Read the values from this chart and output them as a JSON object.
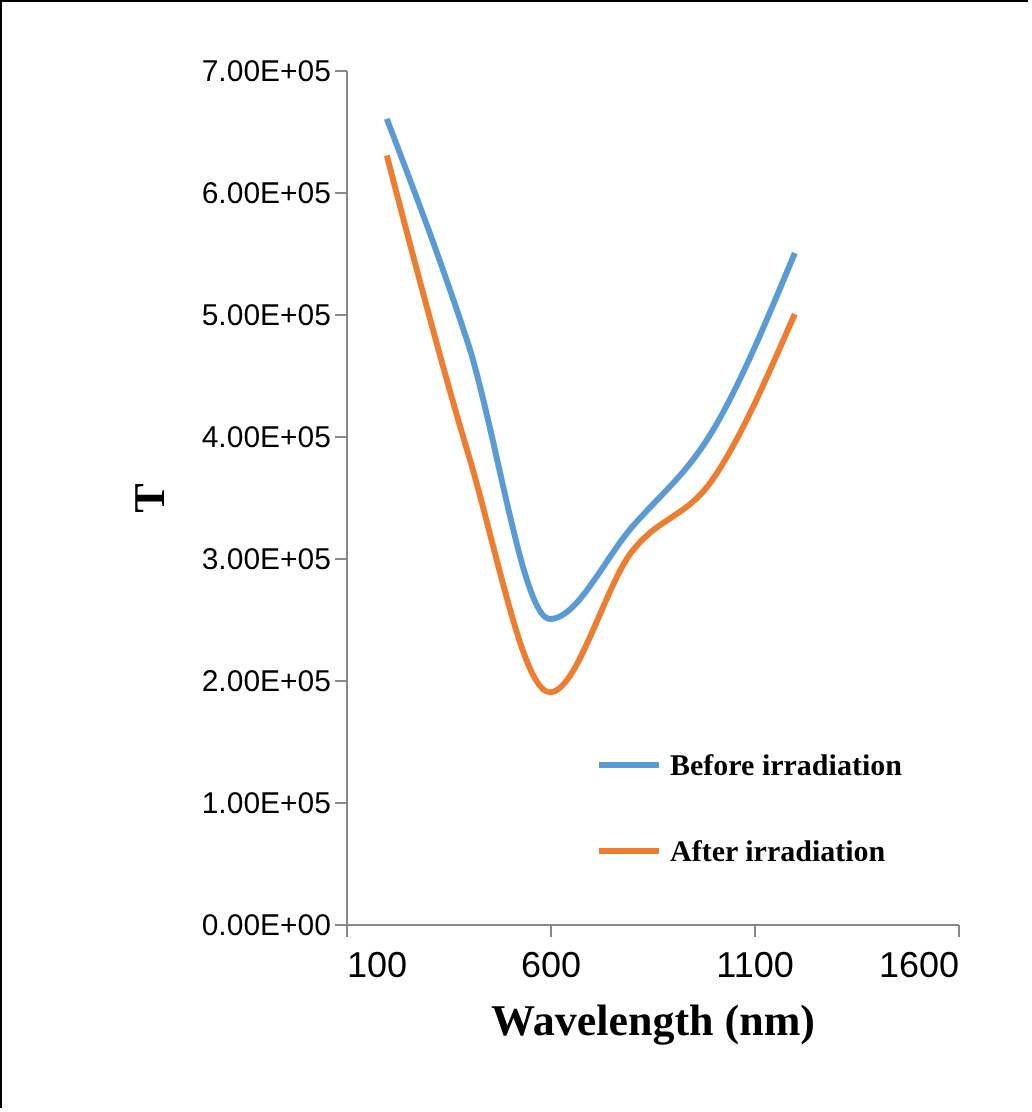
{
  "chart_data": {
    "type": "line",
    "xlabel": "Wavelength (nm)",
    "ylabel": "T",
    "x": [
      200,
      400,
      600,
      800,
      1000,
      1200
    ],
    "series": [
      {
        "name": "Before irradiation",
        "color": "#5b9bd5",
        "values": [
          660000,
          475000,
          250000,
          325000,
          405000,
          550000
        ]
      },
      {
        "name": "After irradiation",
        "color": "#ed7d31",
        "values": [
          630000,
          385000,
          190000,
          305000,
          365000,
          500000
        ]
      }
    ],
    "xlim": [
      100,
      1600
    ],
    "xticks": [
      100,
      600,
      1100,
      1600
    ],
    "ylim": [
      0,
      700000
    ],
    "yticks": [
      {
        "value": 0,
        "label": "0.00E+00"
      },
      {
        "value": 100000,
        "label": "1.00E+05"
      },
      {
        "value": 200000,
        "label": "2.00E+05"
      },
      {
        "value": 300000,
        "label": "3.00E+05"
      },
      {
        "value": 400000,
        "label": "4.00E+05"
      },
      {
        "value": 500000,
        "label": "5.00E+05"
      },
      {
        "value": 600000,
        "label": "6.00E+05"
      },
      {
        "value": 700000,
        "label": "7.00E+05"
      }
    ],
    "grid": false,
    "legend": "bottom right",
    "marker": "none",
    "line_style": "solid"
  }
}
